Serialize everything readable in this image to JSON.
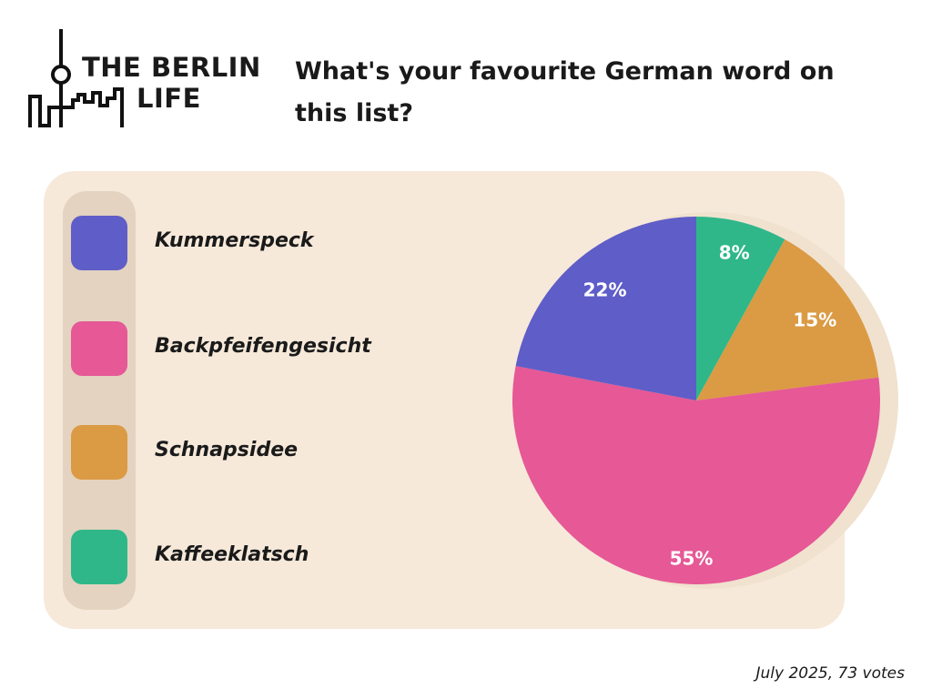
{
  "logo": {
    "line1": "THE BERLIN",
    "line2": "LIFE",
    "icon": "tv-tower-skyline-icon"
  },
  "chart_data": {
    "type": "pie",
    "title": "What's your favourite German word on this list?",
    "slices": [
      {
        "label": "Kaffeeklatsch",
        "value": 8,
        "color": "#2fb78a",
        "value_label": "8%"
      },
      {
        "label": "Schnapsidee",
        "value": 15,
        "color": "#db9a44",
        "value_label": "15%"
      },
      {
        "label": "Backpfeifengesicht",
        "value": 55,
        "color": "#e65896",
        "value_label": "55%"
      },
      {
        "label": "Kummerspeck",
        "value": 22,
        "color": "#5f5dc8",
        "value_label": "22%"
      }
    ],
    "legend": [
      {
        "label": "Kummerspeck",
        "color": "#5f5dc8"
      },
      {
        "label": "Backpfeifengesicht",
        "color": "#e65896"
      },
      {
        "label": "Schnapsidee",
        "color": "#db9a44"
      },
      {
        "label": "Kaffeeklatsch",
        "color": "#2fb78a"
      }
    ],
    "legend_position": "left",
    "start_angle": "12 o'clock",
    "direction": "clockwise"
  },
  "footnote": "July 2025, 73 votes"
}
